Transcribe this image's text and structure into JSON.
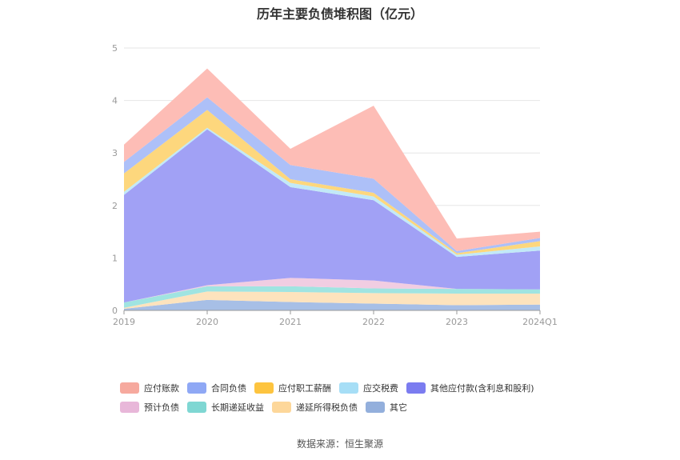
{
  "chart_data": {
    "type": "area",
    "stacked": true,
    "title": "历年主要负债堆积图（亿元）",
    "categories": [
      "2019",
      "2020",
      "2021",
      "2022",
      "2023",
      "2024Q1"
    ],
    "yticks": [
      "0",
      "1",
      "2",
      "3",
      "4",
      "5"
    ],
    "ylim": [
      0,
      5
    ],
    "grid": true,
    "legend_position": "bottom",
    "series": [
      {
        "name": "其它",
        "color": "#a7bfe6",
        "values": [
          0.03,
          0.2,
          0.16,
          0.13,
          0.1,
          0.11
        ]
      },
      {
        "name": "递延所得税负债",
        "color": "#fde3bd",
        "values": [
          0.02,
          0.16,
          0.19,
          0.2,
          0.22,
          0.21
        ]
      },
      {
        "name": "长期递延收益",
        "color": "#a0e4e1",
        "values": [
          0.1,
          0.1,
          0.11,
          0.09,
          0.09,
          0.08
        ]
      },
      {
        "name": "预计负债",
        "color": "#f1cde2",
        "values": [
          0.0,
          0.02,
          0.16,
          0.15,
          0.0,
          0.0
        ]
      },
      {
        "name": "其他应付款(含利息和股利)",
        "color": "#a1a1f5",
        "values": [
          2.05,
          2.97,
          1.73,
          1.53,
          0.61,
          0.74
        ]
      },
      {
        "name": "应交税费",
        "color": "#c2e9f7",
        "values": [
          0.06,
          0.03,
          0.08,
          0.07,
          0.04,
          0.08
        ]
      },
      {
        "name": "应付职工薪酬",
        "color": "#fdd77d",
        "values": [
          0.35,
          0.34,
          0.07,
          0.07,
          0.03,
          0.1
        ]
      },
      {
        "name": "合同负债",
        "color": "#adc0f8",
        "values": [
          0.22,
          0.24,
          0.27,
          0.27,
          0.04,
          0.06
        ]
      },
      {
        "name": "应付账款",
        "color": "#fdbdb6",
        "values": [
          0.33,
          0.55,
          0.31,
          1.39,
          0.24,
          0.12
        ]
      }
    ]
  },
  "legend": {
    "rows": [
      [
        {
          "label": "应付账款",
          "color": "#f6a99e"
        },
        {
          "label": "合同负债",
          "color": "#8fa8f5"
        },
        {
          "label": "应付职工薪酬",
          "color": "#fdc43f"
        },
        {
          "label": "应交税费",
          "color": "#a6def6"
        },
        {
          "label": "其他应付款(含利息和股利)",
          "color": "#7b7cf0"
        }
      ],
      [
        {
          "label": "预计负债",
          "color": "#e8b7d9"
        },
        {
          "label": "长期递延收益",
          "color": "#7fd7d3"
        },
        {
          "label": "递延所得税负债",
          "color": "#fdd79a"
        },
        {
          "label": "其它",
          "color": "#93afdc"
        }
      ]
    ]
  },
  "source_note": "数据来源：恒生聚源"
}
